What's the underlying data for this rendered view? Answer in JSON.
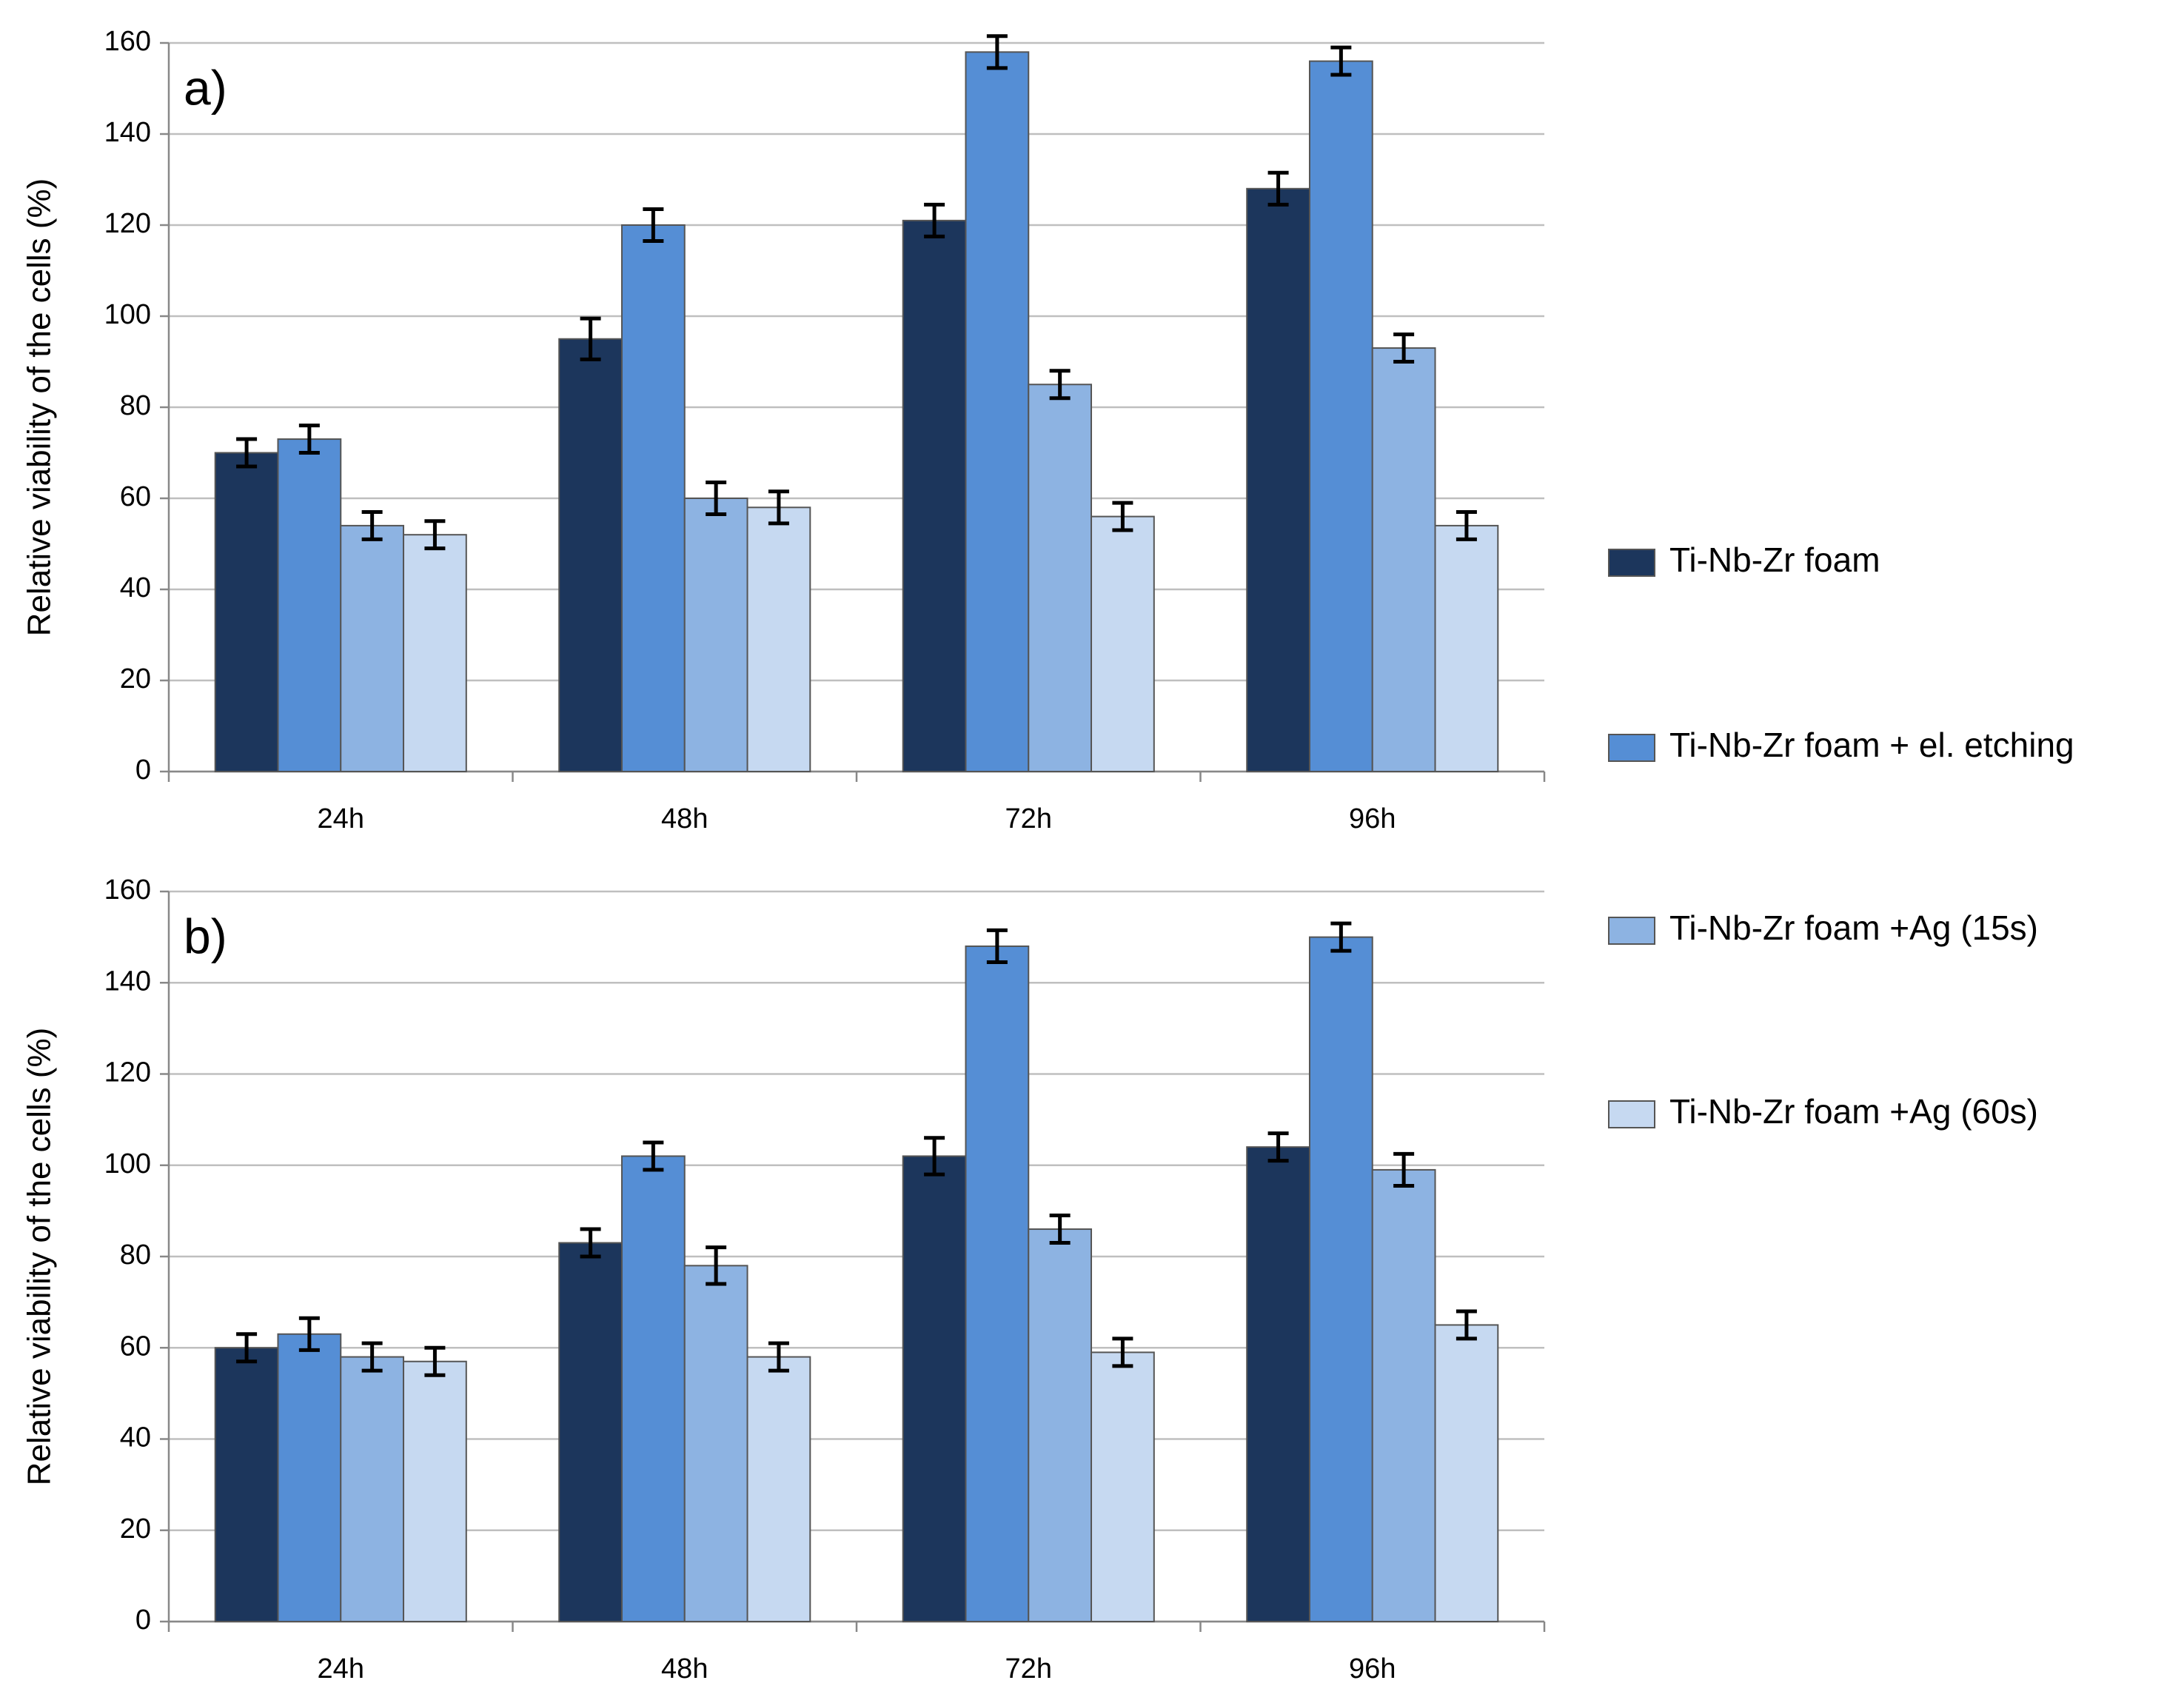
{
  "chart_data": [
    {
      "type": "bar",
      "panel_label": "a)",
      "y_label": "Relative viability of the cells (%)",
      "categories": [
        "24h",
        "48h",
        "72h",
        "96h"
      ],
      "series": [
        {
          "name": "Ti-Nb-Zr foam",
          "color": "#1c365c",
          "values": [
            70,
            95,
            121,
            128
          ],
          "errors": [
            3,
            4.5,
            3.5,
            3.5
          ]
        },
        {
          "name": "Ti-Nb-Zr foam + el. etching",
          "color": "#558ed5",
          "values": [
            73,
            120,
            158,
            156
          ],
          "errors": [
            3,
            3.5,
            3.5,
            3
          ]
        },
        {
          "name": "Ti-Nb-Zr foam +Ag (15s)",
          "color": "#8db3e2",
          "values": [
            54,
            60,
            85,
            93
          ],
          "errors": [
            3,
            3.5,
            3,
            3
          ]
        },
        {
          "name": "Ti-Nb-Zr foam +Ag (60s)",
          "color": "#c6d9f1",
          "values": [
            52,
            58,
            56,
            54
          ],
          "errors": [
            3,
            3.5,
            3,
            3
          ]
        }
      ],
      "ylim": [
        0,
        160
      ],
      "yticks": [
        0,
        20,
        40,
        60,
        80,
        100,
        120,
        140,
        160
      ],
      "grid": true
    },
    {
      "type": "bar",
      "panel_label": "b)",
      "y_label": "Relative viability of the cells (%)",
      "categories": [
        "24h",
        "48h",
        "72h",
        "96h"
      ],
      "series": [
        {
          "color": "#1c365c",
          "values": [
            60,
            83,
            102,
            104
          ],
          "errors": [
            3,
            3,
            4,
            3
          ]
        },
        {
          "color": "#558ed5",
          "values": [
            63,
            102,
            148,
            150
          ],
          "errors": [
            3.5,
            3,
            3.5,
            3
          ]
        },
        {
          "color": "#8db3e2",
          "values": [
            58,
            78,
            86,
            99
          ],
          "errors": [
            3,
            4,
            3,
            3.5
          ]
        },
        {
          "color": "#c6d9f1",
          "values": [
            57,
            58,
            59,
            65
          ],
          "errors": [
            3,
            3,
            3,
            3
          ]
        }
      ],
      "ylim": [
        0,
        160
      ],
      "yticks": [
        0,
        20,
        40,
        60,
        80,
        100,
        120,
        140,
        160
      ],
      "grid": true
    }
  ]
}
